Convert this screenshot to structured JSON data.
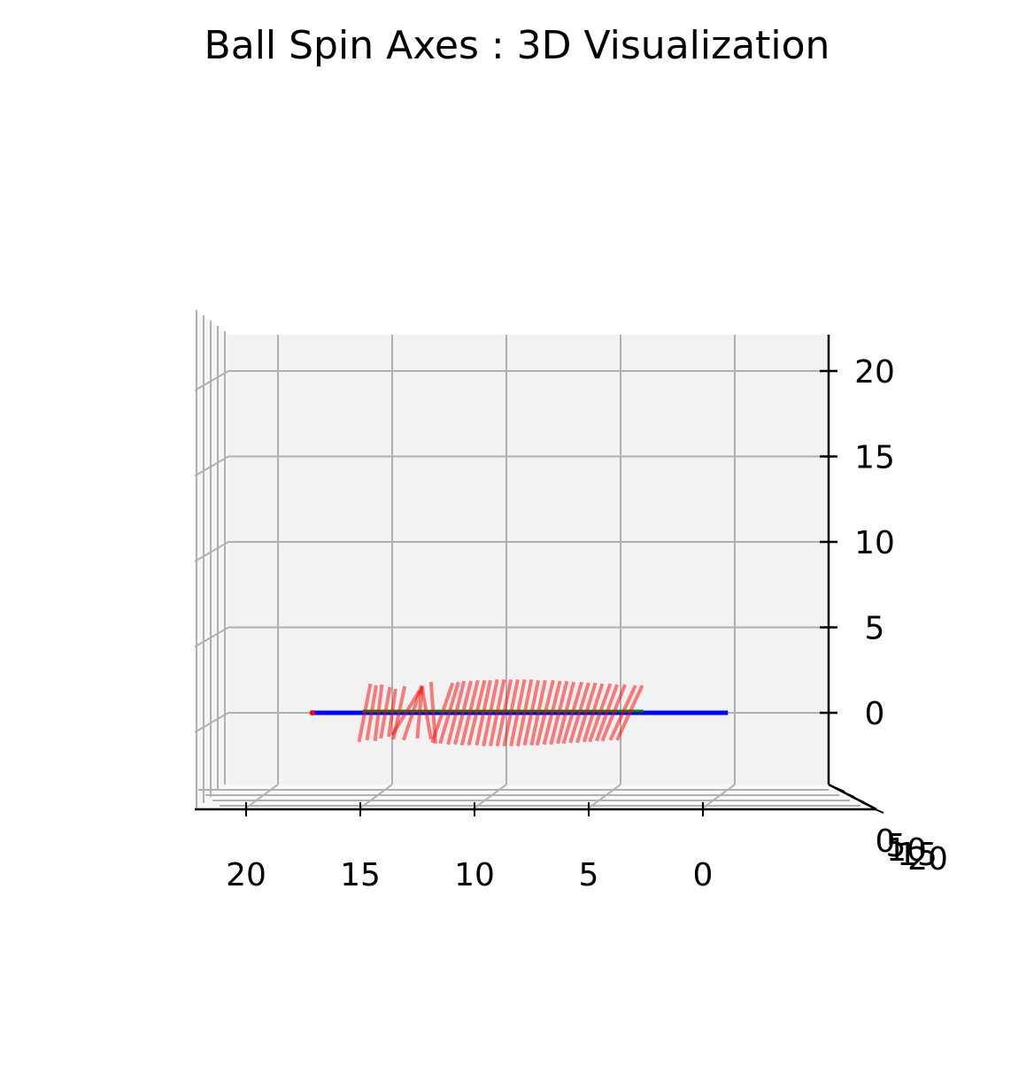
{
  "chart_data": {
    "type": "3d-quiver",
    "title": "Ball Spin Axes : 3D Visualization",
    "xlabel": "",
    "ylabel": "",
    "zlabel": "",
    "x_ticks": [
      "20",
      "15",
      "10",
      "5",
      "0"
    ],
    "z_ticks": [
      "20",
      "15",
      "10",
      "5",
      "0"
    ],
    "y_ticks": [
      "0",
      "5",
      "10",
      "15",
      "20"
    ],
    "x_range": [
      22,
      -2
    ],
    "z_range": [
      -3,
      22
    ],
    "grid": true,
    "pane_color": "#f2f2f2",
    "grid_color": "#b0b0b0",
    "trajectory_color": "#0000ff",
    "axis_line_color": "#008000",
    "spin_axis_color": "#ff0000",
    "trajectory": {
      "x_start": 18.5,
      "x_end": 0.3,
      "z": 0
    },
    "spin_axes": [
      {
        "x": 16.2,
        "dx": 0.5,
        "dz": 3.4
      },
      {
        "x": 15.9,
        "dx": 0.4,
        "dz": 3.2
      },
      {
        "x": 15.6,
        "dx": 0.3,
        "dz": 3.3
      },
      {
        "x": 15.3,
        "dx": 0.4,
        "dz": 3.0
      },
      {
        "x": 15.0,
        "dx": 0.3,
        "dz": 2.8
      },
      {
        "x": 14.7,
        "dx": 0.5,
        "dz": 3.1
      },
      {
        "x": 14.4,
        "dx": 1.2,
        "dz": 2.6
      },
      {
        "x": 14.1,
        "dx": 0.8,
        "dz": 3.2
      },
      {
        "x": 13.8,
        "dx": 0.2,
        "dz": 3.0
      },
      {
        "x": 13.5,
        "dx": -0.4,
        "dz": 3.1
      },
      {
        "x": 13.2,
        "dx": -0.2,
        "dz": 3.6
      },
      {
        "x": 12.8,
        "dx": 0.9,
        "dz": 3.5
      },
      {
        "x": 12.5,
        "dx": 0.8,
        "dz": 3.6
      },
      {
        "x": 12.2,
        "dx": 0.7,
        "dz": 3.7
      },
      {
        "x": 11.9,
        "dx": 0.7,
        "dz": 3.7
      },
      {
        "x": 11.6,
        "dx": 0.7,
        "dz": 3.8
      },
      {
        "x": 11.3,
        "dx": 0.7,
        "dz": 3.8
      },
      {
        "x": 11.0,
        "dx": 0.6,
        "dz": 3.8
      },
      {
        "x": 10.7,
        "dx": 0.6,
        "dz": 3.9
      },
      {
        "x": 10.4,
        "dx": 0.6,
        "dz": 3.9
      },
      {
        "x": 10.1,
        "dx": 0.6,
        "dz": 3.9
      },
      {
        "x": 9.8,
        "dx": 0.6,
        "dz": 3.9
      },
      {
        "x": 9.5,
        "dx": 0.6,
        "dz": 3.9
      },
      {
        "x": 9.2,
        "dx": 0.6,
        "dz": 3.9
      },
      {
        "x": 8.9,
        "dx": 0.6,
        "dz": 3.8
      },
      {
        "x": 8.6,
        "dx": 0.6,
        "dz": 3.8
      },
      {
        "x": 8.3,
        "dx": 0.7,
        "dz": 3.8
      },
      {
        "x": 8.0,
        "dx": 0.7,
        "dz": 3.7
      },
      {
        "x": 7.7,
        "dx": 0.7,
        "dz": 3.7
      },
      {
        "x": 7.4,
        "dx": 0.7,
        "dz": 3.6
      },
      {
        "x": 7.1,
        "dx": 0.8,
        "dz": 3.6
      },
      {
        "x": 6.8,
        "dx": 0.8,
        "dz": 3.5
      },
      {
        "x": 6.5,
        "dx": 0.8,
        "dz": 3.5
      },
      {
        "x": 6.2,
        "dx": 0.8,
        "dz": 3.4
      },
      {
        "x": 5.9,
        "dx": 0.9,
        "dz": 3.4
      },
      {
        "x": 5.6,
        "dx": 0.9,
        "dz": 3.3
      },
      {
        "x": 5.3,
        "dx": 1.0,
        "dz": 3.3
      },
      {
        "x": 4.9,
        "dx": 1.1,
        "dz": 3.2
      },
      {
        "x": 4.6,
        "dx": 1.1,
        "dz": 3.2
      }
    ]
  }
}
